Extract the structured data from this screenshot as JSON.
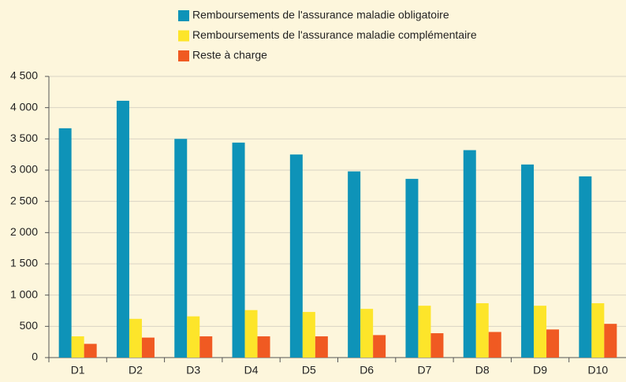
{
  "chart_data": {
    "type": "bar",
    "categories": [
      "D1",
      "D2",
      "D3",
      "D4",
      "D5",
      "D6",
      "D7",
      "D8",
      "D9",
      "D10"
    ],
    "series": [
      {
        "name": "Remboursements de l'assurance maladie obligatoire",
        "color": "#0e93b8",
        "values": [
          3670,
          4110,
          3500,
          3440,
          3250,
          2980,
          2860,
          3320,
          3090,
          2900
        ]
      },
      {
        "name": "Remboursements de l'assurance maladie complémentaire",
        "color": "#fde52a",
        "values": [
          340,
          620,
          660,
          760,
          730,
          780,
          830,
          870,
          830,
          870
        ]
      },
      {
        "name": "Reste à charge",
        "color": "#f05a22",
        "values": [
          220,
          320,
          340,
          340,
          340,
          360,
          390,
          410,
          450,
          540
        ]
      }
    ],
    "ylim": [
      0,
      4500
    ],
    "yticks": [
      0,
      500,
      {
        "value": 1000,
        "label": "1 000"
      },
      {
        "value": 1500,
        "label": "1 500"
      },
      {
        "value": 2000,
        "label": "2 000"
      },
      {
        "value": 2500,
        "label": "2 500"
      },
      {
        "value": 3000,
        "label": "3 000"
      },
      {
        "value": 3500,
        "label": "3 500"
      },
      {
        "value": 4000,
        "label": "4 000"
      },
      {
        "value": 4500,
        "label": "4 500"
      }
    ],
    "grid": true,
    "legend": "top"
  }
}
